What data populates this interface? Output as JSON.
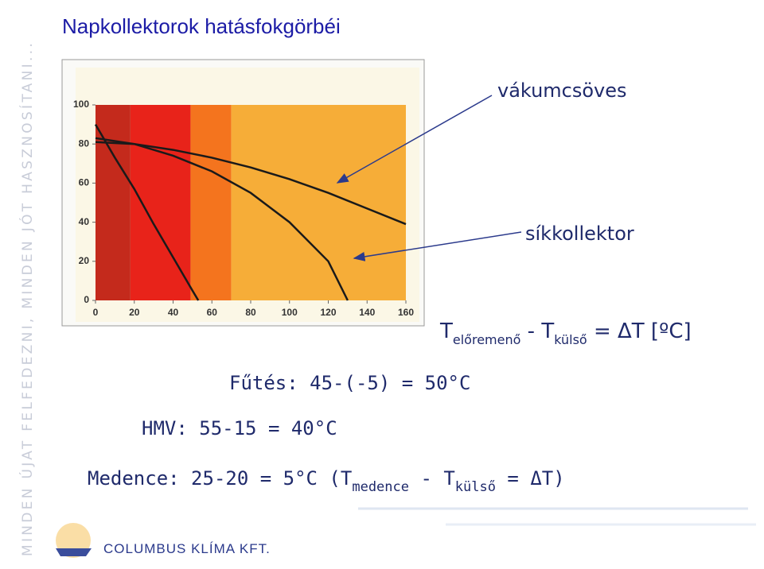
{
  "slide": {
    "title": "Napkollektorok hatásfokgörbéi",
    "side_text": "MINDEN ÚJAT FELFEDEZNI, MINDEN JÓT HASZNOSÍTANI...",
    "heating": "Fűtés: 45-(-5) = 50°C",
    "hmv": "HMV: 55-15 = 40°C",
    "pool_parts": [
      "Medence: 25-20 = 5°C (T",
      "medence",
      " - T",
      "külső",
      " = ΔT)"
    ],
    "logo": "COLUMBUS KLÍMA KFT."
  },
  "chart_data": {
    "type": "line",
    "xlim": [
      0,
      160
    ],
    "ylim": [
      0,
      100
    ],
    "xticks": [
      0,
      20,
      40,
      60,
      80,
      100,
      120,
      140,
      160
    ],
    "yticks": [
      0,
      20,
      40,
      60,
      80,
      100
    ],
    "bands": [
      {
        "from": 0,
        "to": 18,
        "color": "#c42a1c"
      },
      {
        "from": 18,
        "to": 49,
        "color": "#e8231a"
      },
      {
        "from": 49,
        "to": 70,
        "color": "#f4741e"
      },
      {
        "from": 70,
        "to": 160,
        "color": "#f6ad38"
      }
    ],
    "series": [
      {
        "color": "#1a1a1a",
        "x": [
          0,
          10,
          20,
          30,
          40,
          50,
          53
        ],
        "values": [
          90,
          73,
          57,
          39,
          22,
          5,
          0
        ]
      },
      {
        "color": "#1a1a1a",
        "x": [
          0,
          20,
          40,
          60,
          80,
          100,
          120,
          130
        ],
        "values": [
          83,
          80,
          74,
          66,
          55,
          40,
          20,
          0
        ]
      },
      {
        "color": "#1a1a1a",
        "x": [
          0,
          20,
          40,
          60,
          80,
          100,
          120,
          140,
          160
        ],
        "values": [
          81,
          80,
          77,
          73,
          68,
          62,
          55,
          47,
          39
        ]
      }
    ],
    "annotations": [
      "vákumcsöves",
      "síkkollektor"
    ],
    "x_label_parts": [
      "T",
      "előremenő",
      " - T",
      "külső",
      " = ΔT [ºC]"
    ]
  }
}
